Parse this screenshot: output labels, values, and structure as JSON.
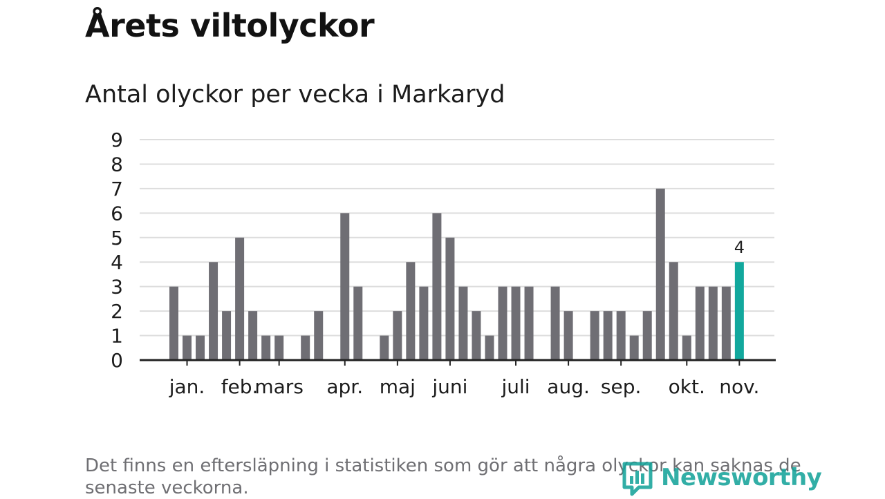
{
  "title": "Årets viltolyckor",
  "subtitle": "Antal olyckor per vecka i Markaryd",
  "footnote": "Det finns en eftersläpning i statistiken som gör att några olyckor kan saknas de senaste veckorna.",
  "logo": {
    "text": "Newsworthy",
    "icon": "bar-chart-logo-icon"
  },
  "colors": {
    "bar": "#6f6e74",
    "highlight": "#12a89d",
    "grid": "#dddddd",
    "axis": "#222222",
    "text": "#1c1c1c"
  },
  "chart_data": {
    "type": "bar",
    "xlabel": "",
    "ylabel": "",
    "ylim": [
      0,
      9
    ],
    "yticks": [
      0,
      1,
      2,
      3,
      4,
      5,
      6,
      7,
      8,
      9
    ],
    "grid": true,
    "values": [
      3,
      1,
      1,
      4,
      2,
      5,
      2,
      1,
      1,
      0,
      1,
      2,
      0,
      6,
      3,
      0,
      1,
      2,
      4,
      3,
      6,
      5,
      3,
      2,
      1,
      3,
      3,
      3,
      0,
      3,
      2,
      0,
      2,
      2,
      2,
      1,
      2,
      7,
      4,
      1,
      3,
      3,
      3,
      4
    ],
    "highlight_index": 43,
    "highlight_label": "4",
    "month_labels": [
      {
        "label": "jan.",
        "position": 1
      },
      {
        "label": "feb.",
        "position": 5
      },
      {
        "label": "mars",
        "position": 8
      },
      {
        "label": "apr.",
        "position": 13
      },
      {
        "label": "maj",
        "position": 17
      },
      {
        "label": "juni",
        "position": 21
      },
      {
        "label": "juli",
        "position": 26
      },
      {
        "label": "aug.",
        "position": 30
      },
      {
        "label": "sep.",
        "position": 34
      },
      {
        "label": "okt.",
        "position": 39
      },
      {
        "label": "nov.",
        "position": 43
      }
    ]
  }
}
